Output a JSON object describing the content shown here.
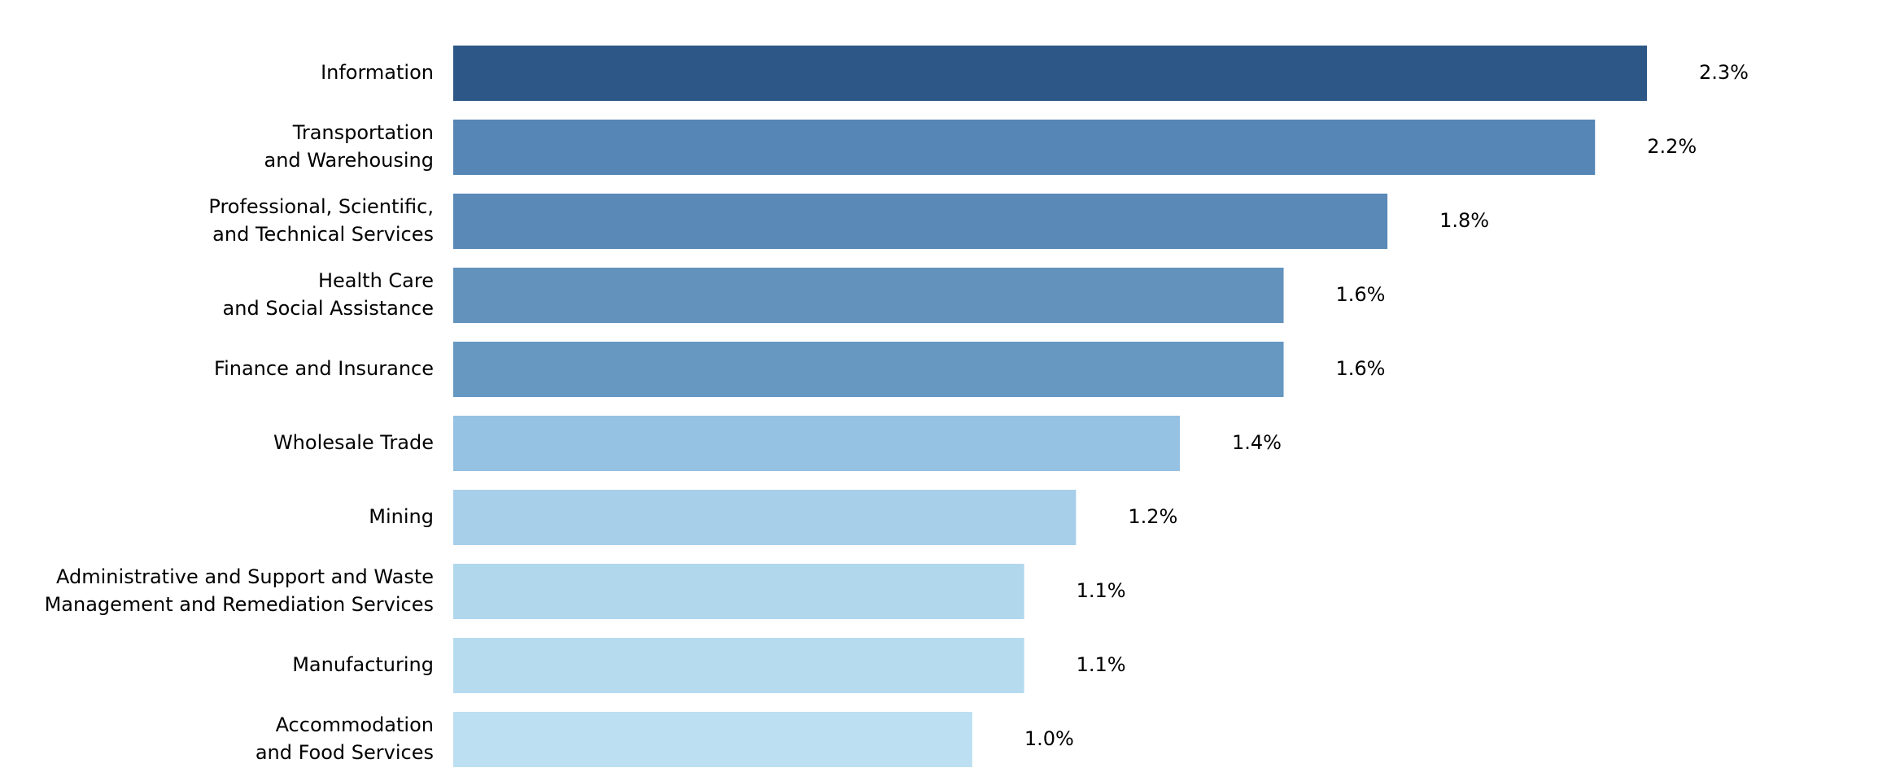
{
  "chart_data": {
    "type": "bar",
    "orientation": "horizontal",
    "title": "",
    "xlabel": "",
    "ylabel": "",
    "grid": false,
    "legend": "none",
    "xlim": [
      0,
      2.3
    ],
    "categories": [
      [
        "Information"
      ],
      [
        "Transportation",
        "and Warehousing"
      ],
      [
        "Professional, Scientific,",
        "and Technical Services"
      ],
      [
        "Health Care",
        "and Social Assistance"
      ],
      [
        "Finance and Insurance"
      ],
      [
        "Wholesale Trade"
      ],
      [
        "Mining"
      ],
      [
        "Administrative and Support and Waste",
        "Management and Remediation Services"
      ],
      [
        "Manufacturing"
      ],
      [
        "Accommodation",
        "and Food Services"
      ]
    ],
    "values": [
      2.3,
      2.2,
      1.8,
      1.6,
      1.6,
      1.4,
      1.2,
      1.1,
      1.1,
      1.0
    ],
    "value_labels": [
      "2.3%",
      "2.2%",
      "1.8%",
      "1.6%",
      "1.6%",
      "1.4%",
      "1.2%",
      "1.1%",
      "1.1%",
      "1.0%"
    ],
    "bar_colors": [
      "#2c5786",
      "#5686b6",
      "#5a89b8",
      "#6393bd",
      "#6698c2",
      "#95c1e2",
      "#a8cfea",
      "#b1d7ed",
      "#b6dbef",
      "#bce0f1"
    ]
  }
}
